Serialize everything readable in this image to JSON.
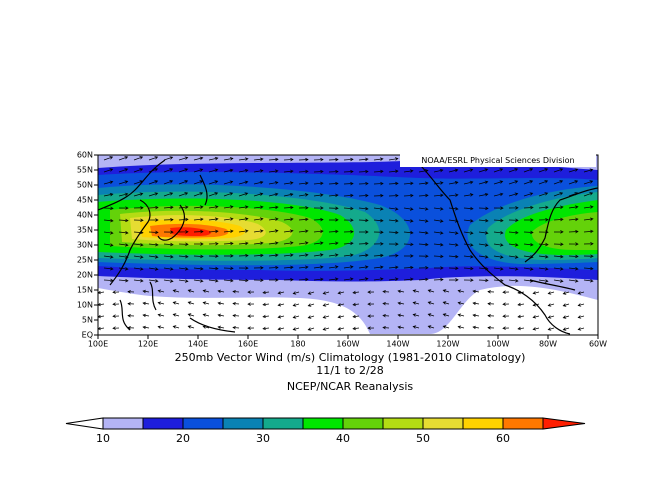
{
  "map": {
    "credit": "NOAA/ESRL Physical Sciences Division",
    "title_lines": [
      "250mb Vector Wind (m/s) Climatology (1981-2010 Climatology)",
      "11/1  to 2/28",
      "NCEP/NCAR Reanalysis"
    ],
    "lat_range": [
      0,
      60
    ],
    "lon_range": [
      100,
      300
    ],
    "lat_ticks": [
      {
        "value": 60,
        "label": "60N"
      },
      {
        "value": 55,
        "label": "55N"
      },
      {
        "value": 50,
        "label": "50N"
      },
      {
        "value": 45,
        "label": "45N"
      },
      {
        "value": 40,
        "label": "40N"
      },
      {
        "value": 35,
        "label": "35N"
      },
      {
        "value": 30,
        "label": "30N"
      },
      {
        "value": 25,
        "label": "25N"
      },
      {
        "value": 20,
        "label": "20N"
      },
      {
        "value": 15,
        "label": "15N"
      },
      {
        "value": 10,
        "label": "10N"
      },
      {
        "value": 5,
        "label": "5N"
      },
      {
        "value": 0,
        "label": "EQ"
      }
    ],
    "lon_ticks": [
      {
        "value": 100,
        "label": "100E"
      },
      {
        "value": 120,
        "label": "120E"
      },
      {
        "value": 140,
        "label": "140E"
      },
      {
        "value": 160,
        "label": "160E"
      },
      {
        "value": 180,
        "label": "180"
      },
      {
        "value": 200,
        "label": "160W"
      },
      {
        "value": 220,
        "label": "140W"
      },
      {
        "value": 240,
        "label": "120W"
      },
      {
        "value": 260,
        "label": "100W"
      },
      {
        "value": 280,
        "label": "80W"
      },
      {
        "value": 300,
        "label": "60W"
      }
    ]
  },
  "colorbar": {
    "ticks": [
      10,
      20,
      30,
      40,
      50,
      60
    ],
    "colors": [
      "#ffffff",
      "#b4b4f5",
      "#1e1edc",
      "#0a50dc",
      "#0a82b4",
      "#14aa8c",
      "#00e600",
      "#64d20a",
      "#b4dc14",
      "#e6dc32",
      "#ffd200",
      "#ff7800",
      "#ff1e00"
    ]
  }
}
